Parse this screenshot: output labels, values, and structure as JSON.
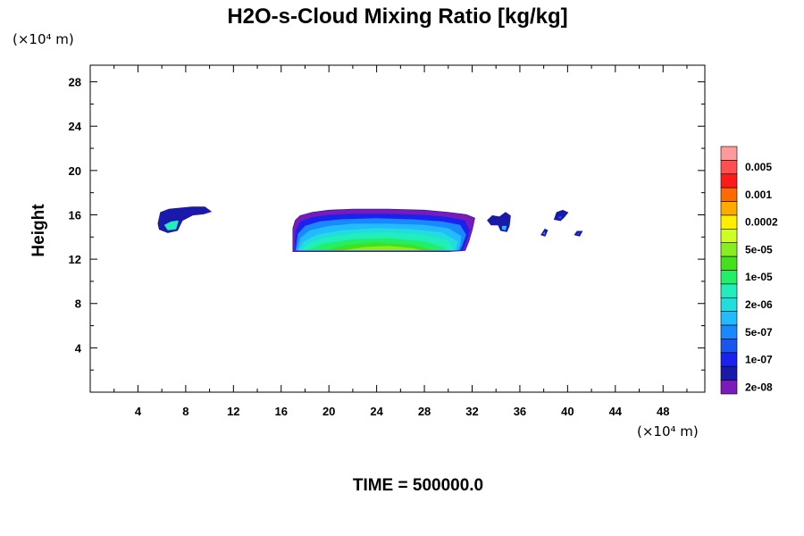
{
  "chart_data": {
    "type": "heatmap",
    "title": "H2O-s-Cloud Mixing Ratio [kg/kg]",
    "ylabel": "Height",
    "x_unit": "(×10⁴ m)",
    "y_unit": "(×10⁴ m)",
    "footer": "TIME = 500000.0",
    "xlim": [
      0,
      51.5
    ],
    "ylim": [
      0,
      29.5
    ],
    "x_ticks": [
      4,
      8,
      12,
      16,
      20,
      24,
      28,
      32,
      36,
      40,
      44,
      48
    ],
    "y_ticks": [
      4,
      8,
      12,
      16,
      20,
      24,
      28
    ],
    "colorbar": {
      "labels": [
        "0.005",
        "0.001",
        "0.0002",
        "5e-05",
        "1e-05",
        "2e-06",
        "5e-07",
        "1e-07",
        "2e-08"
      ],
      "colors": [
        "#ff9a9a",
        "#ff4f4f",
        "#ff1a1a",
        "#ff6a00",
        "#ffaa00",
        "#ffee00",
        "#ccff22",
        "#88ee22",
        "#44e01e",
        "#22ee66",
        "#22eebb",
        "#22dddd",
        "#22bbff",
        "#1a88ff",
        "#1a55ee",
        "#1a22ee",
        "#1a1aaa",
        "#7a1abb"
      ]
    },
    "regions": [
      {
        "name": "cloud-left",
        "outline": [
          [
            5.7,
            15.2
          ],
          [
            5.9,
            16.2
          ],
          [
            6.6,
            16.5
          ],
          [
            8.5,
            16.7
          ],
          [
            9.6,
            16.7
          ],
          [
            10.1,
            16.3
          ],
          [
            9.5,
            16.1
          ],
          [
            8.6,
            16.0
          ],
          [
            7.7,
            15.5
          ],
          [
            7.3,
            14.6
          ],
          [
            6.5,
            14.4
          ],
          [
            5.8,
            14.7
          ]
        ],
        "core": [
          [
            6.2,
            15.1
          ],
          [
            6.8,
            15.4
          ],
          [
            7.4,
            15.5
          ],
          [
            7.2,
            14.7
          ],
          [
            6.5,
            14.6
          ]
        ],
        "core_level": 10
      },
      {
        "name": "cloud-main",
        "outline": [
          [
            17.0,
            12.7
          ],
          [
            17.0,
            14.8
          ],
          [
            17.2,
            15.5
          ],
          [
            17.6,
            15.9
          ],
          [
            18.6,
            16.2
          ],
          [
            20,
            16.4
          ],
          [
            22,
            16.5
          ],
          [
            25,
            16.5
          ],
          [
            28,
            16.4
          ],
          [
            30,
            16.2
          ],
          [
            31.5,
            16.0
          ],
          [
            32.2,
            15.7
          ],
          [
            32.0,
            14.7
          ],
          [
            31.7,
            13.6
          ],
          [
            31.4,
            12.8
          ],
          [
            30,
            12.7
          ],
          [
            26,
            12.7
          ],
          [
            20,
            12.7
          ]
        ],
        "bands": [
          {
            "level": 17,
            "poly": [
              [
                17.0,
                12.7
              ],
              [
                17.0,
                14.8
              ],
              [
                17.2,
                15.5
              ],
              [
                17.6,
                15.9
              ],
              [
                18.6,
                16.2
              ],
              [
                20,
                16.4
              ],
              [
                22,
                16.5
              ],
              [
                25,
                16.5
              ],
              [
                28,
                16.4
              ],
              [
                30,
                16.2
              ],
              [
                31.5,
                16.0
              ],
              [
                32.2,
                15.7
              ],
              [
                32.0,
                14.7
              ],
              [
                31.7,
                13.6
              ],
              [
                31.4,
                12.8
              ],
              [
                30,
                12.7
              ],
              [
                26,
                12.7
              ],
              [
                20,
                12.7
              ]
            ]
          },
          {
            "level": 15,
            "poly": [
              [
                17.1,
                12.8
              ],
              [
                17.2,
                14.6
              ],
              [
                17.6,
                15.4
              ],
              [
                18.6,
                15.8
              ],
              [
                20,
                16.0
              ],
              [
                22,
                16.1
              ],
              [
                25,
                16.1
              ],
              [
                28,
                16.0
              ],
              [
                30,
                15.8
              ],
              [
                31.4,
                15.5
              ],
              [
                31.8,
                14.6
              ],
              [
                31.5,
                13.5
              ],
              [
                31.2,
                12.8
              ]
            ]
          },
          {
            "level": 13,
            "poly": [
              [
                17.2,
                12.8
              ],
              [
                17.4,
                14.3
              ],
              [
                18,
                15.0
              ],
              [
                19.2,
                15.4
              ],
              [
                21,
                15.6
              ],
              [
                24,
                15.7
              ],
              [
                27,
                15.6
              ],
              [
                29.5,
                15.4
              ],
              [
                31,
                15.1
              ],
              [
                31.5,
                14.2
              ],
              [
                31.2,
                13.3
              ],
              [
                31.0,
                12.8
              ]
            ]
          },
          {
            "level": 12,
            "poly": [
              [
                17.3,
                12.8
              ],
              [
                17.6,
                13.9
              ],
              [
                18.4,
                14.6
              ],
              [
                20,
                15.0
              ],
              [
                22,
                15.2
              ],
              [
                25,
                15.2
              ],
              [
                28,
                15.1
              ],
              [
                30,
                14.8
              ],
              [
                31.1,
                14.1
              ],
              [
                31.0,
                13.2
              ],
              [
                30.8,
                12.8
              ]
            ]
          },
          {
            "level": 11,
            "poly": [
              [
                17.4,
                12.8
              ],
              [
                17.9,
                13.6
              ],
              [
                19,
                14.2
              ],
              [
                21,
                14.6
              ],
              [
                24,
                14.8
              ],
              [
                27,
                14.7
              ],
              [
                29.5,
                14.4
              ],
              [
                30.8,
                13.6
              ],
              [
                30.6,
                12.8
              ]
            ]
          },
          {
            "level": 10,
            "poly": [
              [
                17.6,
                12.8
              ],
              [
                18.4,
                13.5
              ],
              [
                20,
                14.0
              ],
              [
                22,
                14.3
              ],
              [
                25,
                14.4
              ],
              [
                28,
                14.2
              ],
              [
                30,
                13.7
              ],
              [
                30.5,
                12.8
              ]
            ]
          },
          {
            "level": 9,
            "poly": [
              [
                18.2,
                12.8
              ],
              [
                19.5,
                13.4
              ],
              [
                22,
                13.8
              ],
              [
                25,
                13.9
              ],
              [
                28,
                13.6
              ],
              [
                29.8,
                13.0
              ],
              [
                29.6,
                12.8
              ]
            ]
          },
          {
            "level": 8,
            "poly": [
              [
                19.6,
                12.8
              ],
              [
                21.5,
                13.3
              ],
              [
                24,
                13.5
              ],
              [
                27,
                13.3
              ],
              [
                28.8,
                12.8
              ]
            ]
          },
          {
            "level": 7,
            "poly": [
              [
                21.2,
                12.8
              ],
              [
                23,
                13.1
              ],
              [
                25,
                13.2
              ],
              [
                27,
                13.0
              ],
              [
                27.8,
                12.8
              ]
            ]
          }
        ]
      },
      {
        "name": "cloud-drop",
        "outline": [
          [
            33.3,
            15.5
          ],
          [
            33.7,
            15.9
          ],
          [
            34.3,
            15.8
          ],
          [
            34.8,
            16.2
          ],
          [
            35.2,
            15.9
          ],
          [
            35.1,
            15.0
          ],
          [
            34.9,
            14.5
          ],
          [
            34.4,
            14.6
          ],
          [
            34.2,
            15.1
          ],
          [
            33.6,
            15.1
          ]
        ],
        "core": [
          [
            34.5,
            15.0
          ],
          [
            34.9,
            15.0
          ],
          [
            34.8,
            14.6
          ],
          [
            34.5,
            14.7
          ]
        ],
        "core_level": 12
      },
      {
        "name": "cloud-right-small",
        "outline": [
          [
            38.9,
            15.6
          ],
          [
            39.1,
            16.2
          ],
          [
            39.6,
            16.4
          ],
          [
            40.0,
            16.2
          ],
          [
            39.7,
            15.8
          ],
          [
            39.4,
            15.5
          ]
        ],
        "core": [
          [
            39.2,
            15.8
          ],
          [
            39.5,
            15.9
          ],
          [
            39.4,
            15.6
          ]
        ],
        "core_level": 14
      },
      {
        "name": "cloud-speck-1",
        "outline": [
          [
            37.8,
            14.2
          ],
          [
            38.1,
            14.7
          ],
          [
            38.3,
            14.6
          ],
          [
            38.1,
            14.1
          ]
        ],
        "core": [
          [
            37.9,
            14.3
          ],
          [
            38.1,
            14.5
          ],
          [
            38.1,
            14.2
          ]
        ],
        "core_level": 13
      },
      {
        "name": "cloud-speck-2",
        "outline": [
          [
            40.6,
            14.2
          ],
          [
            40.8,
            14.5
          ],
          [
            41.2,
            14.5
          ],
          [
            41.0,
            14.1
          ]
        ],
        "core": [
          [
            40.8,
            14.3
          ],
          [
            41.0,
            14.4
          ],
          [
            40.9,
            14.2
          ]
        ],
        "core_level": 13
      }
    ]
  }
}
